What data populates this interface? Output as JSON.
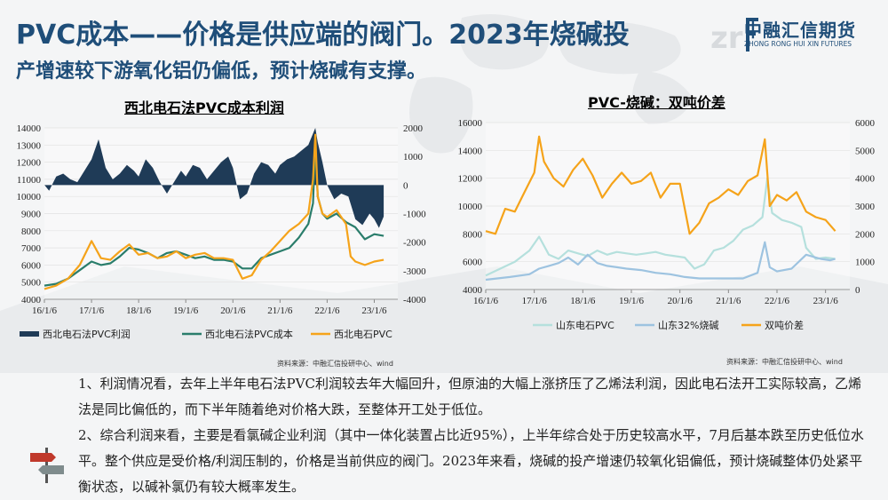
{
  "header": {
    "title_line1": "PVC成本——价格是供应端的阀门。2023年烧碱投",
    "title_line2": "产增速较下游氧化铝仍偏低，预计烧碱有支撑。",
    "title_color": "#1f4e79"
  },
  "logo": {
    "name_cn": "中融汇信期货",
    "name_en": "ZHONG RONG HUI XIN FUTURES",
    "mark": "zrf-logo-icon"
  },
  "chart_data": [
    {
      "type": "line",
      "title": "西北电石法PVC成本利润",
      "x_ticks": [
        "16/1/6",
        "17/1/6",
        "18/1/6",
        "19/1/6",
        "20/1/6",
        "21/1/6",
        "22/1/6",
        "23/1/6"
      ],
      "y_left_ticks": [
        "14000",
        "13000",
        "12000",
        "11000",
        "10000",
        "9000",
        "8000",
        "7000",
        "6000",
        "5000",
        "4000"
      ],
      "y_right_ticks": [
        "2000",
        "1000",
        "0",
        "-1000",
        "-2000",
        "-3000",
        "-4000"
      ],
      "ylim_left": [
        4000,
        14000
      ],
      "ylim_right": [
        -4000,
        2000
      ],
      "legend_position": "bottom",
      "series": [
        {
          "name": "西北电石法PVC利润",
          "axis": "right",
          "style": "area",
          "color": "#1f3b57",
          "x": [
            2016.0,
            2016.1,
            2016.25,
            2016.4,
            2016.55,
            2016.7,
            2016.85,
            2017.0,
            2017.15,
            2017.3,
            2017.45,
            2017.6,
            2017.75,
            2017.9,
            2018.0,
            2018.15,
            2018.3,
            2018.45,
            2018.6,
            2018.75,
            2018.9,
            2019.0,
            2019.15,
            2019.3,
            2019.45,
            2019.6,
            2019.75,
            2019.9,
            2020.0,
            2020.15,
            2020.3,
            2020.45,
            2020.6,
            2020.75,
            2020.9,
            2021.0,
            2021.15,
            2021.3,
            2021.45,
            2021.6,
            2021.7,
            2021.75,
            2021.8,
            2021.9,
            2022.0,
            2022.15,
            2022.3,
            2022.45,
            2022.6,
            2022.75,
            2022.9,
            2023.0,
            2023.1,
            2023.2
          ],
          "values": [
            0,
            -200,
            300,
            400,
            200,
            100,
            500,
            900,
            1600,
            600,
            200,
            400,
            700,
            500,
            300,
            900,
            600,
            100,
            -300,
            100,
            500,
            300,
            700,
            600,
            200,
            500,
            800,
            1000,
            600,
            -500,
            -300,
            400,
            800,
            700,
            400,
            700,
            900,
            1000,
            1200,
            1400,
            1800,
            2000,
            1500,
            800,
            0,
            -500,
            -300,
            -400,
            -1200,
            -1400,
            -1000,
            -1200,
            -1500,
            -1100
          ]
        },
        {
          "name": "西北电石法PVC成本",
          "axis": "left",
          "color": "#2a7d6b",
          "x": [
            2016.0,
            2016.25,
            2016.5,
            2016.75,
            2017.0,
            2017.2,
            2017.4,
            2017.6,
            2017.8,
            2018.0,
            2018.2,
            2018.4,
            2018.6,
            2018.8,
            2019.0,
            2019.2,
            2019.4,
            2019.6,
            2019.8,
            2020.0,
            2020.2,
            2020.4,
            2020.6,
            2020.8,
            2021.0,
            2021.2,
            2021.4,
            2021.6,
            2021.7,
            2021.75,
            2021.8,
            2021.9,
            2022.0,
            2022.2,
            2022.4,
            2022.6,
            2022.8,
            2023.0,
            2023.2
          ],
          "values": [
            4800,
            4900,
            5200,
            5700,
            6200,
            6000,
            6100,
            6500,
            7000,
            6900,
            6700,
            6400,
            6700,
            6800,
            6600,
            6400,
            6500,
            6300,
            6300,
            6200,
            5800,
            5800,
            6400,
            6600,
            6800,
            7000,
            7600,
            8400,
            9600,
            13200,
            10000,
            9000,
            8700,
            9000,
            8500,
            8200,
            7500,
            7800,
            7700
          ]
        },
        {
          "name": "西北电石PVC",
          "axis": "left",
          "color": "#f5a31a",
          "x": [
            2016.0,
            2016.25,
            2016.5,
            2016.75,
            2017.0,
            2017.2,
            2017.4,
            2017.6,
            2017.8,
            2018.0,
            2018.2,
            2018.4,
            2018.6,
            2018.8,
            2019.0,
            2019.2,
            2019.4,
            2019.6,
            2019.8,
            2020.0,
            2020.2,
            2020.4,
            2020.6,
            2020.8,
            2021.0,
            2021.2,
            2021.4,
            2021.6,
            2021.7,
            2021.75,
            2021.8,
            2021.9,
            2022.0,
            2022.2,
            2022.4,
            2022.5,
            2022.6,
            2022.8,
            2023.0,
            2023.2
          ],
          "values": [
            4600,
            4800,
            5200,
            6000,
            7400,
            6400,
            6300,
            6800,
            7200,
            6600,
            6700,
            6400,
            6500,
            6800,
            6400,
            6600,
            6700,
            6400,
            6400,
            6300,
            5200,
            5400,
            6300,
            6800,
            7400,
            8000,
            8400,
            9000,
            11000,
            13600,
            10000,
            9000,
            8800,
            9200,
            8400,
            6500,
            6200,
            6000,
            6200,
            6300
          ]
        }
      ]
    },
    {
      "type": "line",
      "title": "PVC-烧碱：双吨价差",
      "x_ticks": [
        "16/1/6",
        "17/1/6",
        "18/1/6",
        "19/1/6",
        "20/1/6",
        "21/1/6",
        "22/1/6",
        "23/1/6"
      ],
      "y_left_ticks": [
        "16000",
        "14000",
        "12000",
        "10000",
        "8000",
        "6000",
        "4000"
      ],
      "y_right_ticks": [
        "6000",
        "5000",
        "4000",
        "3000",
        "2000",
        "1000",
        "0"
      ],
      "ylim_left": [
        4000,
        16000
      ],
      "ylim_right": [
        0,
        6000
      ],
      "legend_position": "bottom",
      "series": [
        {
          "name": "山东电石PVC",
          "axis": "left",
          "color": "#b5e0dd",
          "x": [
            2016.0,
            2016.3,
            2016.6,
            2016.9,
            2017.1,
            2017.3,
            2017.5,
            2017.7,
            2017.9,
            2018.1,
            2018.3,
            2018.5,
            2018.7,
            2018.9,
            2019.1,
            2019.3,
            2019.5,
            2019.7,
            2019.9,
            2020.1,
            2020.3,
            2020.5,
            2020.7,
            2020.9,
            2021.1,
            2021.3,
            2021.5,
            2021.7,
            2021.8,
            2021.9,
            2022.1,
            2022.3,
            2022.5,
            2022.6,
            2022.8,
            2023.0,
            2023.2
          ],
          "values": [
            5000,
            5500,
            6000,
            6800,
            7800,
            6500,
            6200,
            6800,
            6600,
            6400,
            6800,
            6500,
            6700,
            6600,
            6500,
            6600,
            6700,
            6500,
            6400,
            6300,
            5500,
            5800,
            6800,
            7000,
            7500,
            8300,
            8600,
            9200,
            12000,
            9500,
            9000,
            8800,
            8500,
            7000,
            6200,
            6300,
            6200
          ]
        },
        {
          "name": "山东32%烧碱",
          "axis": "left",
          "color": "#9dc3e0",
          "x": [
            2016.0,
            2016.5,
            2016.9,
            2017.1,
            2017.3,
            2017.5,
            2017.7,
            2017.9,
            2018.1,
            2018.3,
            2018.5,
            2018.7,
            2018.9,
            2019.2,
            2019.5,
            2019.8,
            2020.1,
            2020.4,
            2020.7,
            2021.0,
            2021.3,
            2021.6,
            2021.75,
            2021.85,
            2022.0,
            2022.3,
            2022.6,
            2022.9,
            2023.1,
            2023.2
          ],
          "values": [
            4700,
            4900,
            5100,
            5500,
            5700,
            5900,
            6300,
            5800,
            6500,
            5900,
            5700,
            5600,
            5500,
            5400,
            5200,
            5100,
            4900,
            4800,
            4800,
            4800,
            4800,
            5200,
            7400,
            5600,
            5300,
            5500,
            6500,
            6200,
            6100,
            6200
          ]
        },
        {
          "name": "双吨价差",
          "axis": "right",
          "color": "#f5a31a",
          "x": [
            2016.0,
            2016.2,
            2016.4,
            2016.6,
            2016.8,
            2017.0,
            2017.1,
            2017.2,
            2017.4,
            2017.6,
            2017.8,
            2018.0,
            2018.2,
            2018.4,
            2018.6,
            2018.8,
            2019.0,
            2019.2,
            2019.4,
            2019.6,
            2019.8,
            2020.0,
            2020.2,
            2020.4,
            2020.6,
            2020.8,
            2021.0,
            2021.2,
            2021.4,
            2021.6,
            2021.75,
            2021.85,
            2022.0,
            2022.2,
            2022.4,
            2022.6,
            2022.8,
            2023.0,
            2023.2
          ],
          "values": [
            2100,
            2000,
            2900,
            2800,
            3500,
            4200,
            5500,
            4600,
            4000,
            3700,
            4300,
            4700,
            4100,
            3300,
            3800,
            4200,
            3800,
            3900,
            4200,
            3300,
            3800,
            3800,
            2000,
            2400,
            3100,
            3300,
            3600,
            3400,
            3900,
            4100,
            5400,
            3000,
            3400,
            3200,
            3500,
            2800,
            2600,
            2500,
            2100
          ]
        }
      ]
    }
  ],
  "sources": {
    "left": "资料来源：中融汇信投研中心、wind",
    "right": "资料来源：中融汇信投研中心、wind"
  },
  "paragraphs": [
    "1、利润情况看，去年上半年电石法PVC利润较去年大幅回升，但原油的大幅上涨挤压了乙烯法利润，因此电石法开工实际较高，乙烯法是同比偏低的，而下半年随着绝对价格大跌，至整体开工处于低位。",
    "2、综合利润来看，主要是看氯碱企业利润（其中一体化装置占比近95%），上半年综合处于历史较高水平，7月后基本跌至历史低位水平。整个供应是受价格/利润压制的，价格是当前供应的阀门。2023年来看，烧碱的投产增速仍较氧化铝偏低，预计烧碱整体仍处紧平衡状态，以碱补氯仍有较大概率发生。"
  ],
  "decor": {
    "signpost": "signpost-icon",
    "background": "world-map-background"
  }
}
